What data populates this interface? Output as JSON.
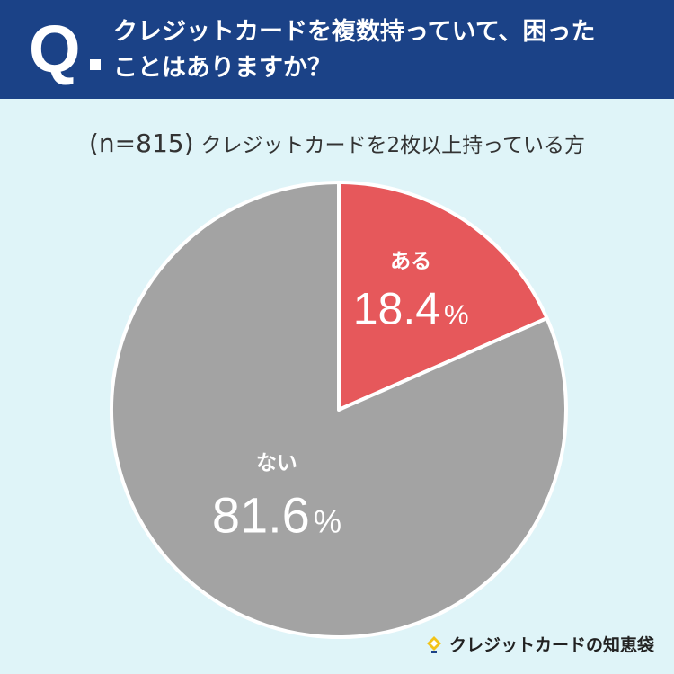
{
  "header": {
    "q_label": "Q",
    "question_line1": "クレジットカードを複数持っていて、困った",
    "question_line2": "ことはありますか？"
  },
  "sample": {
    "n_text": "(n=815)",
    "description": "クレジットカードを2枚以上持っている方"
  },
  "chart_data": {
    "type": "pie",
    "slices": [
      {
        "label": "ある",
        "value": 18.4,
        "display": "18.4",
        "unit": "%",
        "color": "#e6585b"
      },
      {
        "label": "ない",
        "value": 81.6,
        "display": "81.6",
        "unit": "%",
        "color": "#a3a3a3"
      }
    ],
    "start": "12 o'clock",
    "direction": "clockwise"
  },
  "footer": {
    "logo_text": "クレジットカードの知恵袋",
    "logo_icon": "lightbulb-icon",
    "logo_icon_color": "#f2c318"
  },
  "colors": {
    "header_bg": "#1b4287",
    "page_bg": "#dff4f8"
  }
}
